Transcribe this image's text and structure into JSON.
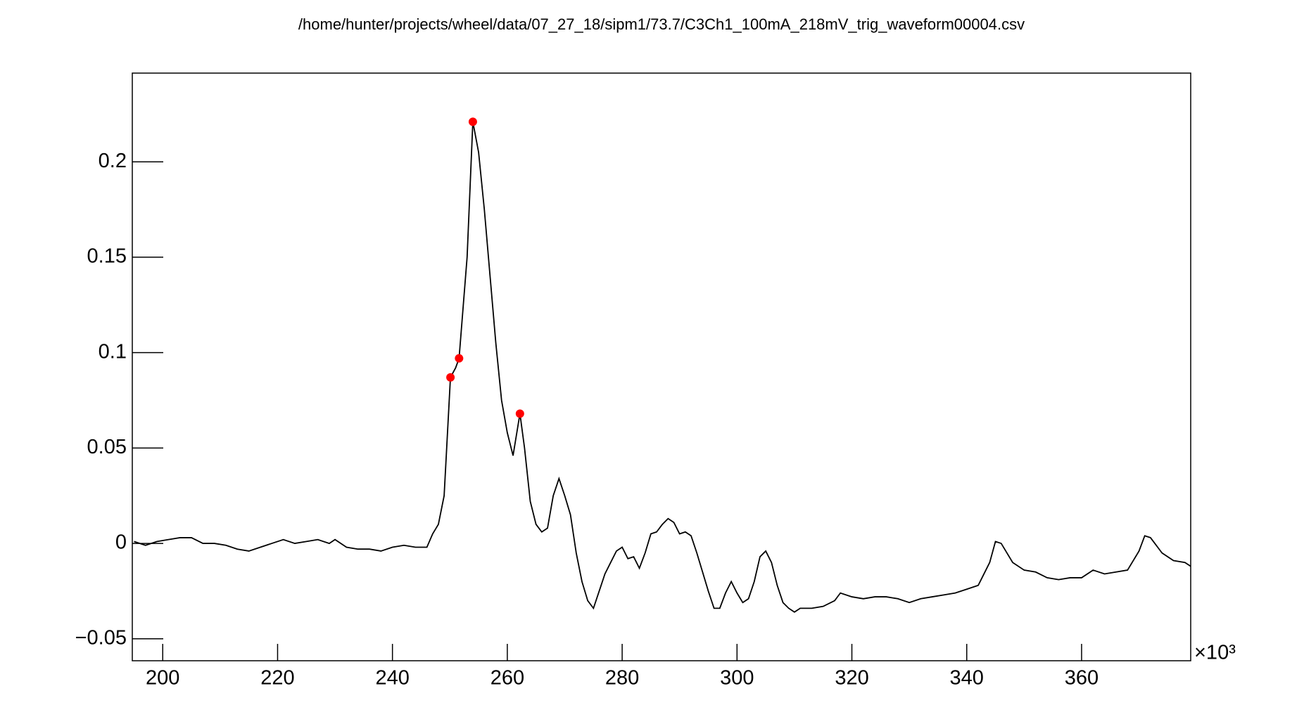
{
  "chart_data": {
    "type": "line",
    "title": "/home/hunter/projects/wheel/data/07_27_18/sipm1/73.7/C3Ch1_100mA_218mV_trig_waveform00004.csv",
    "x_multiplier": "×10³",
    "xlim": [
      194.7,
      379
    ],
    "ylim": [
      -0.0615,
      0.2465
    ],
    "xticks": [
      200,
      220,
      240,
      260,
      280,
      300,
      320,
      340,
      360
    ],
    "yticks": [
      {
        "value": -0.05,
        "label": "−0.05"
      },
      0,
      0.05,
      0.1,
      0.15,
      0.2
    ],
    "series": [
      {
        "color": "#000000",
        "x": [
          195,
          197,
          199,
          201,
          203,
          205,
          207,
          209,
          211,
          213,
          215,
          217,
          219,
          221,
          223,
          225,
          227,
          229,
          230,
          232,
          234,
          236,
          238,
          240,
          242,
          244,
          246,
          247,
          248,
          249,
          250.1,
          251,
          251.6,
          253,
          254,
          255,
          256,
          257,
          258,
          259,
          260,
          261,
          262.2,
          263,
          264,
          265,
          266,
          267,
          268,
          269,
          270,
          271,
          272,
          273,
          274,
          275,
          276,
          277,
          278,
          279,
          280,
          281,
          282,
          283,
          284,
          285,
          286,
          287,
          288,
          289,
          290,
          291,
          292,
          293,
          294,
          295,
          296,
          297,
          298,
          299,
          300,
          301,
          302,
          303,
          304,
          305,
          306,
          307,
          308,
          309,
          310,
          311,
          313,
          315,
          317,
          318,
          320,
          322,
          324,
          326,
          328,
          330,
          332,
          334,
          336,
          338,
          340,
          342,
          344,
          345,
          346,
          348,
          350,
          352,
          354,
          356,
          358,
          360,
          362,
          364,
          366,
          368,
          370,
          371,
          372,
          374,
          376,
          378,
          379
        ],
        "values": [
          0.001,
          -0.001,
          0.001,
          0.002,
          0.003,
          0.003,
          0.0,
          0.0,
          -0.001,
          -0.003,
          -0.004,
          -0.002,
          0.0,
          0.002,
          0.0,
          0.001,
          0.002,
          0.0,
          0.002,
          -0.002,
          -0.003,
          -0.003,
          -0.004,
          -0.002,
          -0.001,
          -0.002,
          -0.002,
          0.005,
          0.01,
          0.025,
          0.087,
          0.092,
          0.097,
          0.15,
          0.221,
          0.205,
          0.175,
          0.14,
          0.105,
          0.075,
          0.058,
          0.046,
          0.068,
          0.05,
          0.022,
          0.01,
          0.006,
          0.008,
          0.025,
          0.034,
          0.025,
          0.015,
          -0.005,
          -0.02,
          -0.03,
          -0.034,
          -0.025,
          -0.016,
          -0.01,
          -0.004,
          -0.002,
          -0.008,
          -0.007,
          -0.013,
          -0.005,
          0.005,
          0.006,
          0.01,
          0.013,
          0.011,
          0.005,
          0.006,
          0.004,
          -0.005,
          -0.015,
          -0.025,
          -0.034,
          -0.034,
          -0.026,
          -0.02,
          -0.026,
          -0.031,
          -0.029,
          -0.02,
          -0.007,
          -0.004,
          -0.01,
          -0.022,
          -0.031,
          -0.034,
          -0.036,
          -0.034,
          -0.034,
          -0.033,
          -0.03,
          -0.026,
          -0.028,
          -0.029,
          -0.028,
          -0.028,
          -0.029,
          -0.031,
          -0.029,
          -0.028,
          -0.027,
          -0.026,
          -0.024,
          -0.022,
          -0.01,
          0.001,
          0.0,
          -0.01,
          -0.014,
          -0.015,
          -0.018,
          -0.019,
          -0.018,
          -0.018,
          -0.014,
          -0.016,
          -0.015,
          -0.014,
          -0.004,
          0.004,
          0.003,
          -0.005,
          -0.009,
          -0.01,
          -0.012
        ]
      },
      {
        "color": "#ff0000",
        "marker": "circle",
        "x": [
          250.1,
          251.6,
          254.0,
          262.2
        ],
        "values": [
          0.087,
          0.097,
          0.221,
          0.068
        ]
      }
    ]
  }
}
